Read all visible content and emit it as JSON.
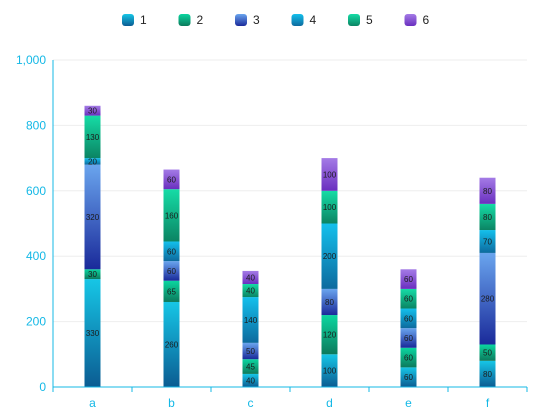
{
  "chart_data": {
    "type": "bar",
    "stacked": true,
    "title": "",
    "xlabel": "",
    "ylabel": "",
    "categories": [
      "a",
      "b",
      "c",
      "d",
      "e",
      "f"
    ],
    "ylim": [
      0,
      1000
    ],
    "yticks": [
      0,
      200,
      400,
      600,
      800,
      1000
    ],
    "ytick_labels": [
      "0",
      "200",
      "400",
      "600",
      "800",
      "1,000"
    ],
    "grid": true,
    "legend_position": "top-center",
    "series": [
      {
        "name": "1",
        "values": [
          330,
          260,
          40,
          100,
          60,
          80
        ]
      },
      {
        "name": "2",
        "values": [
          30,
          65,
          45,
          120,
          60,
          50
        ]
      },
      {
        "name": "3",
        "values": [
          320,
          60,
          50,
          80,
          60,
          280
        ]
      },
      {
        "name": "4",
        "values": [
          20,
          60,
          140,
          200,
          60,
          70
        ]
      },
      {
        "name": "5",
        "values": [
          130,
          160,
          40,
          100,
          60,
          80
        ]
      },
      {
        "name": "6",
        "values": [
          30,
          60,
          40,
          100,
          60,
          80
        ]
      }
    ],
    "colors": {
      "1": {
        "top": "#16c6e6",
        "bottom": "#0b5c92"
      },
      "2": {
        "top": "#0bd6a0",
        "bottom": "#0c7a5c"
      },
      "3": {
        "top": "#6aa5ee",
        "bottom": "#1a2a9a"
      },
      "4": {
        "top": "#14c0ec",
        "bottom": "#0d6a9e"
      },
      "5": {
        "top": "#16dca6",
        "bottom": "#0b8463"
      },
      "6": {
        "top": "#a47be6",
        "bottom": "#6a2fbf"
      }
    },
    "axis_color": "#14b8e6",
    "grid_color": "#eeeeee"
  }
}
